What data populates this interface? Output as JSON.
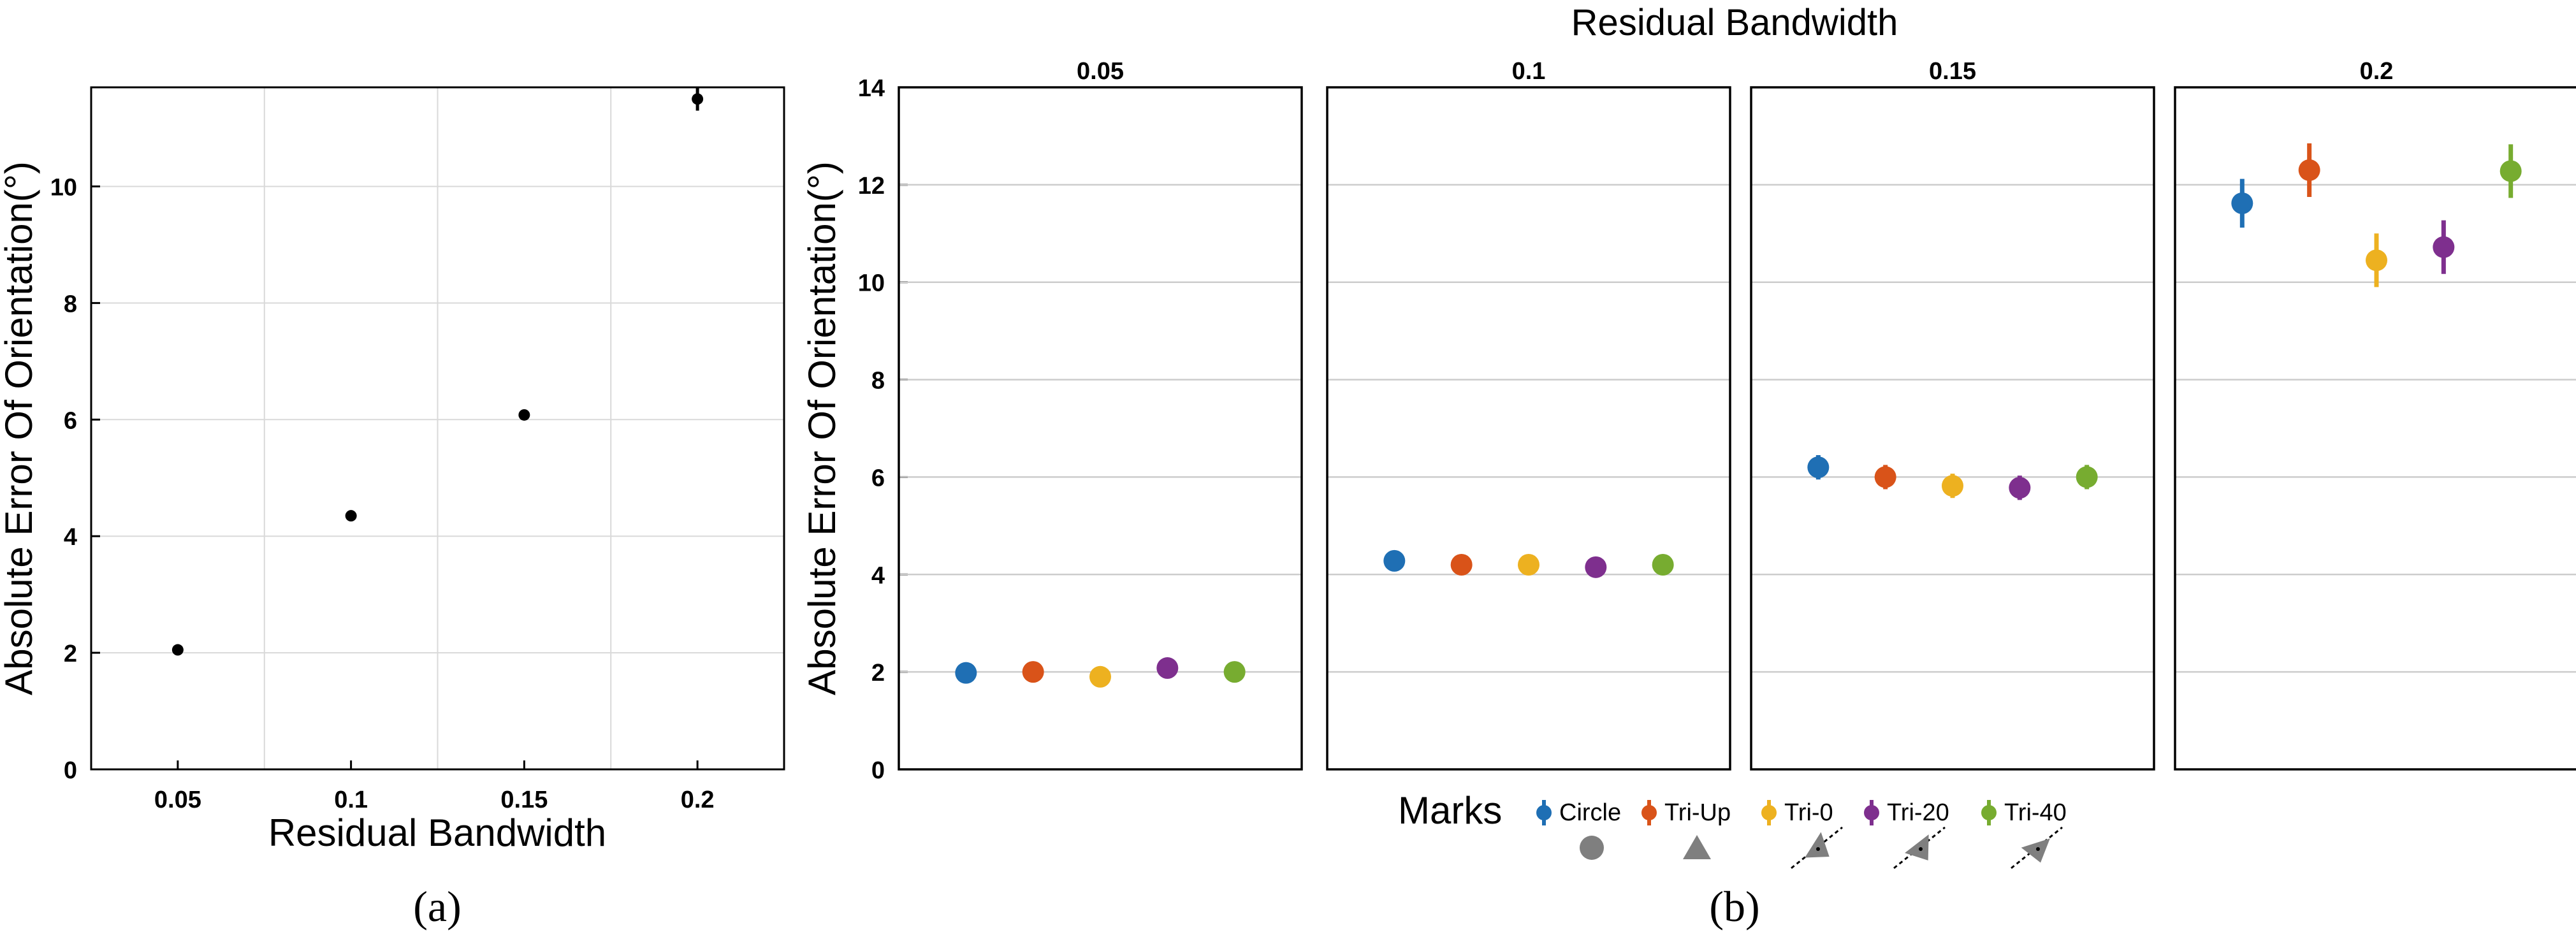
{
  "figure": {
    "caption_a": "(a)",
    "caption_b": "(b)"
  },
  "chart_data": [
    {
      "type": "scatter",
      "panel": "a",
      "xlabel": "Residual Bandwidth",
      "ylabel": "Absolute Error Of Orientation(°)",
      "categories": [
        "0.05",
        "0.1",
        "0.15",
        "0.2"
      ],
      "values": [
        2.05,
        4.35,
        6.08,
        11.5
      ],
      "errors": [
        0.05,
        0.06,
        0.08,
        0.2
      ],
      "ylim": [
        0,
        11.7
      ],
      "yticks": [
        0,
        2,
        4,
        6,
        8,
        10
      ],
      "xlim": [
        0.025,
        0.225
      ],
      "grid": true,
      "point_color": "#000000"
    },
    {
      "type": "scatter",
      "panel": "b",
      "title": "Residual Bandwidth",
      "ylabel": "Absolute Error Of Orientation(°)",
      "ylim": [
        0,
        14
      ],
      "yticks": [
        0,
        2,
        4,
        6,
        8,
        10,
        12,
        14
      ],
      "grid": true,
      "facets": [
        "0.05",
        "0.1",
        "0.15",
        "0.2"
      ],
      "legend": {
        "title": "Marks",
        "placement": "bottom",
        "glyphs": [
          "circle",
          "triangle-up",
          "triangle-0",
          "triangle-20",
          "triangle-40"
        ],
        "glyph_color": "#7f7f7f"
      },
      "series": [
        {
          "name": "Circle",
          "color": "#1f6fb4",
          "values": [
            1.98,
            4.28,
            6.2,
            11.62
          ],
          "errors": [
            0.06,
            0.08,
            0.25,
            0.5
          ]
        },
        {
          "name": "Tri-Up",
          "color": "#d95319",
          "values": [
            2.0,
            4.2,
            6.0,
            12.3
          ],
          "errors": [
            0.06,
            0.08,
            0.25,
            0.55
          ]
        },
        {
          "name": "Tri-0",
          "color": "#edb120",
          "values": [
            1.9,
            4.2,
            5.82,
            10.45
          ],
          "errors": [
            0.06,
            0.08,
            0.25,
            0.55
          ]
        },
        {
          "name": "Tri-20",
          "color": "#7e2f8e",
          "values": [
            2.08,
            4.15,
            5.78,
            10.72
          ],
          "errors": [
            0.06,
            0.08,
            0.25,
            0.55
          ]
        },
        {
          "name": "Tri-40",
          "color": "#77ac30",
          "values": [
            2.0,
            4.2,
            6.0,
            12.28
          ],
          "errors": [
            0.06,
            0.08,
            0.25,
            0.55
          ]
        }
      ]
    }
  ]
}
